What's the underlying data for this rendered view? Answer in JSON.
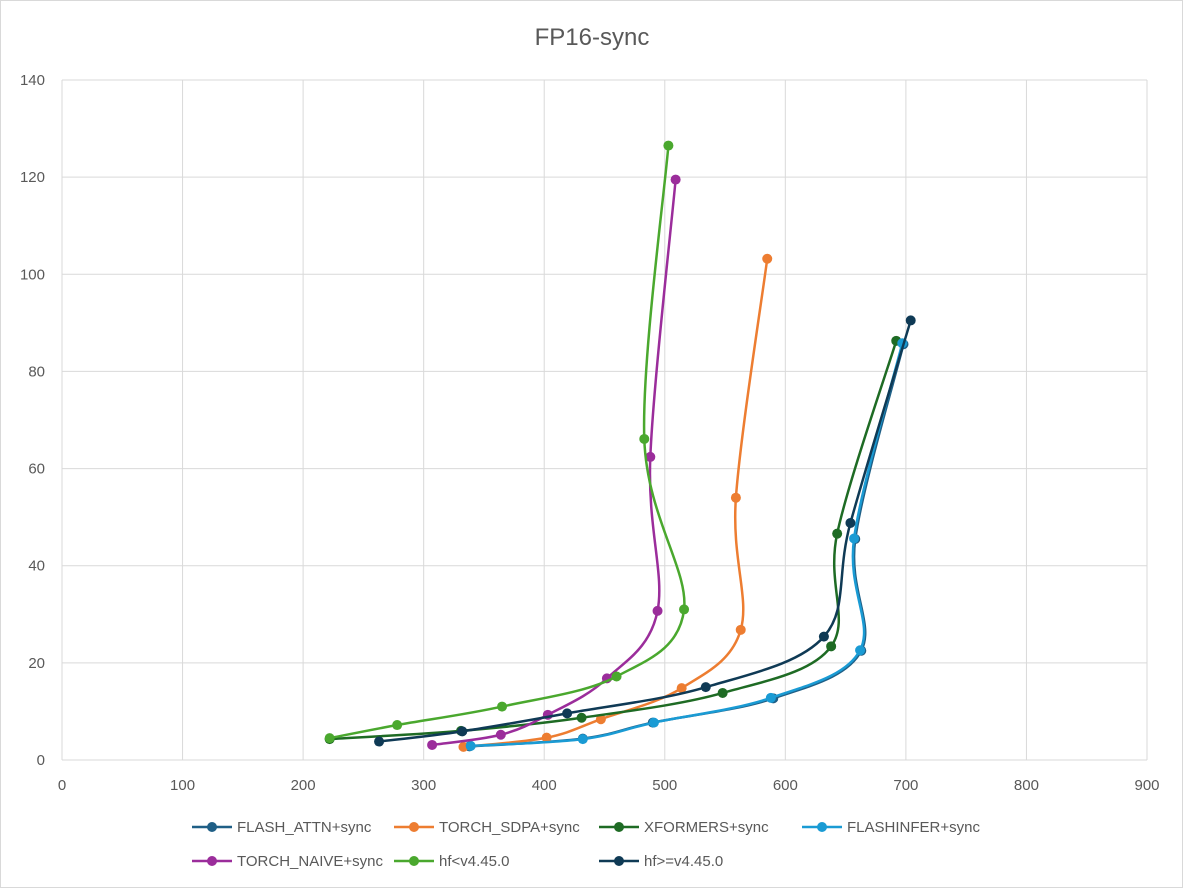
{
  "chart_data": {
    "type": "scatter",
    "title": "FP16-sync",
    "xlabel": "",
    "ylabel": "",
    "xlim": [
      0,
      900
    ],
    "ylim": [
      0,
      140
    ],
    "x_ticks": [
      0,
      100,
      200,
      300,
      400,
      500,
      600,
      700,
      800,
      900
    ],
    "y_ticks": [
      0,
      20,
      40,
      60,
      80,
      100,
      120,
      140
    ],
    "grid": true,
    "legend_position": "bottom",
    "smooth_lines": true,
    "series": [
      {
        "name": "FLASH_ATTN+sync",
        "color": "#1f5f86",
        "points": [
          [
            338,
            2.8
          ],
          [
            432,
            4.4
          ],
          [
            490,
            7.7
          ],
          [
            590,
            12.7
          ],
          [
            663,
            22.5
          ],
          [
            658,
            45.5
          ],
          [
            698,
            85.6
          ]
        ]
      },
      {
        "name": "TORCH_SDPA+sync",
        "color": "#ed7d31",
        "points": [
          [
            333,
            2.7
          ],
          [
            402,
            4.6
          ],
          [
            447,
            8.4
          ],
          [
            514,
            14.8
          ],
          [
            563,
            26.8
          ],
          [
            559,
            54.0
          ],
          [
            585,
            103.2
          ]
        ]
      },
      {
        "name": "XFORMERS+sync",
        "color": "#1e6b24",
        "points": [
          [
            222,
            4.3
          ],
          [
            331,
            6.0
          ],
          [
            431,
            8.7
          ],
          [
            548,
            13.8
          ],
          [
            638,
            23.4
          ],
          [
            643,
            46.6
          ],
          [
            692,
            86.3
          ]
        ]
      },
      {
        "name": "FLASHINFER+sync",
        "color": "#1a9bd4",
        "points": [
          [
            339,
            2.9
          ],
          [
            432,
            4.3
          ],
          [
            491,
            7.7
          ],
          [
            588,
            12.8
          ],
          [
            662,
            22.6
          ],
          [
            657,
            45.6
          ],
          [
            697,
            85.8
          ]
        ]
      },
      {
        "name": "TORCH_NAIVE+sync",
        "color": "#9b2d9b",
        "points": [
          [
            307,
            3.1
          ],
          [
            364,
            5.2
          ],
          [
            403,
            9.3
          ],
          [
            452,
            16.8
          ],
          [
            494,
            30.7
          ],
          [
            488,
            62.4
          ],
          [
            509,
            119.5
          ]
        ]
      },
      {
        "name": "hf<v4.45.0",
        "color": "#4aa82e",
        "points": [
          [
            222,
            4.5
          ],
          [
            278,
            7.2
          ],
          [
            365,
            11.0
          ],
          [
            460,
            17.2
          ],
          [
            516,
            31.0
          ],
          [
            483,
            66.1
          ],
          [
            503,
            126.5
          ]
        ]
      },
      {
        "name": "hf>=v4.45.0",
        "color": "#0f3a55",
        "points": [
          [
            263,
            3.8
          ],
          [
            332,
            5.9
          ],
          [
            419,
            9.6
          ],
          [
            534,
            15.0
          ],
          [
            632,
            25.4
          ],
          [
            654,
            48.8
          ],
          [
            704,
            90.5
          ]
        ]
      }
    ]
  }
}
